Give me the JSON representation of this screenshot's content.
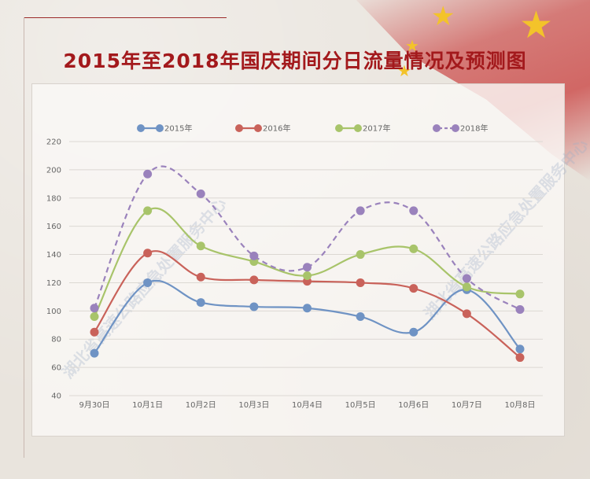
{
  "title": "2015年至2018年国庆期间分日流量情况及预测图",
  "watermark": "湖北省高速公路应急处置服务中心",
  "colors": {
    "title": "#a3191c",
    "s2015": "#6f93c4",
    "s2016": "#c9625a",
    "s2017": "#a8c46a",
    "s2018": "#9a82bc"
  },
  "chart_data": {
    "type": "line",
    "title": "2015年至2018年国庆期间分日流量情况及预测图",
    "categories": [
      "9月30日",
      "10月1日",
      "10月2日",
      "10月3日",
      "10月4日",
      "10月5日",
      "10月6日",
      "10月7日",
      "10月8日"
    ],
    "ylim": [
      40,
      220
    ],
    "yticks": [
      40,
      60,
      80,
      100,
      120,
      140,
      160,
      180,
      200,
      220
    ],
    "grid": true,
    "legend_position": "top",
    "series": [
      {
        "name": "2015年",
        "color": "#6f93c4",
        "dashed": false,
        "values": [
          70,
          120,
          106,
          103,
          102,
          96,
          85,
          115,
          73
        ]
      },
      {
        "name": "2016年",
        "color": "#c9625a",
        "dashed": false,
        "values": [
          85,
          141,
          124,
          122,
          121,
          120,
          116,
          98,
          67
        ]
      },
      {
        "name": "2017年",
        "color": "#a8c46a",
        "dashed": false,
        "values": [
          96,
          171,
          146,
          135,
          125,
          140,
          144,
          117,
          112
        ]
      },
      {
        "name": "2018年",
        "color": "#9a82bc",
        "dashed": true,
        "values": [
          102,
          197,
          183,
          139,
          131,
          171,
          171,
          123,
          101
        ]
      }
    ]
  }
}
